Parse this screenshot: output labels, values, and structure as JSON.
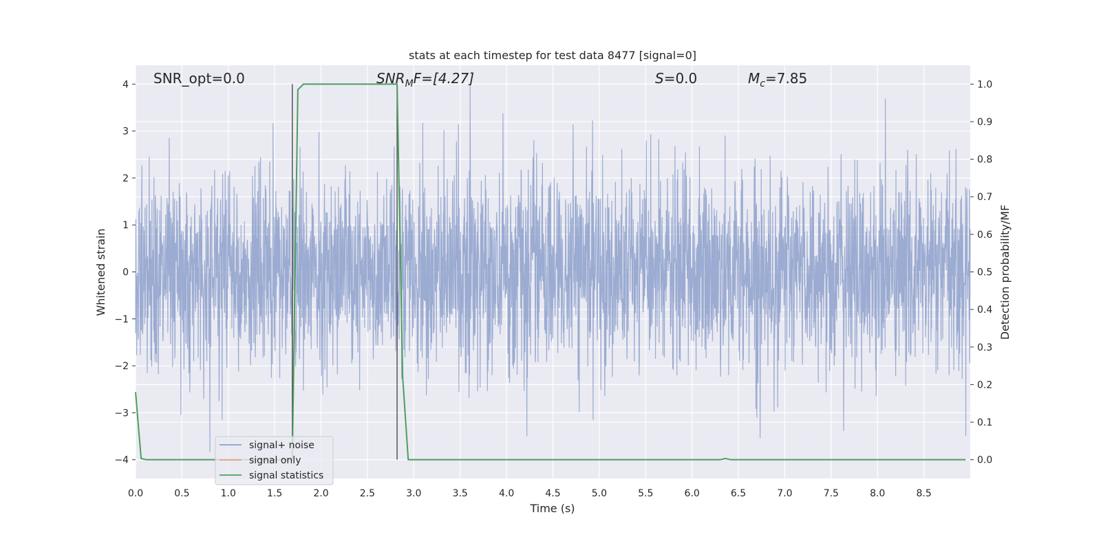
{
  "chart_data": {
    "type": "line",
    "title": "stats at each timestep for test data 8477 [signal=0]",
    "xlabel": "Time (s)",
    "ylabel": "Whitened strain",
    "y2label": "Detection probability/MF",
    "xlim": [
      0.0,
      9.0
    ],
    "ylim": [
      -4.4,
      4.4
    ],
    "y2lim": [
      -0.05,
      1.05
    ],
    "xticks": [
      "0.0",
      "0.5",
      "1.0",
      "1.5",
      "2.0",
      "2.5",
      "3.0",
      "3.5",
      "4.0",
      "4.5",
      "5.0",
      "5.5",
      "6.0",
      "6.5",
      "7.0",
      "7.5",
      "8.0",
      "8.5"
    ],
    "yticks": [
      "4",
      "3",
      "2",
      "1",
      "0",
      "−1",
      "−2",
      "−3",
      "−4"
    ],
    "y2ticks": [
      "1.0",
      "0.9",
      "0.8",
      "0.7",
      "0.6",
      "0.5",
      "0.4",
      "0.3",
      "0.2",
      "0.1",
      "0.0"
    ],
    "grid": true,
    "legend_position": "lower-left",
    "annotations": {
      "snr_opt": "SNR_opt=0.0",
      "snr_mf_base": "SNR",
      "snr_mf_sub": "M",
      "snr_mf_tail": "F=[4.27]",
      "s_base": "S",
      "s_tail": "=0.0",
      "mc_base": "M",
      "mc_sub": "c",
      "mc_tail": "=7.85"
    },
    "vlines_x": [
      1.69,
      2.82
    ],
    "series": [
      {
        "name": "signal+ noise",
        "color": "#8da0cb",
        "kind": "noise",
        "description_points": 3000
      },
      {
        "name": "signal only",
        "color": "#e5a27f",
        "kind": "empty"
      },
      {
        "name": "signal statistics",
        "color": "#4c9e5c",
        "kind": "stats",
        "x": [
          0.0,
          0.06,
          0.12,
          1.69,
          1.75,
          1.81,
          2.8,
          2.82,
          2.88,
          2.94,
          6.3,
          6.36,
          6.42,
          8.95
        ],
        "y": [
          0.18,
          0.003,
          0.0,
          0.0,
          0.985,
          1.0,
          1.0,
          1.0,
          0.22,
          0.0,
          0.0,
          0.003,
          0.0,
          0.0
        ]
      }
    ]
  },
  "colors": {
    "plot_bg": "#eaeaf2",
    "grid": "#ffffff",
    "noise": "#8da0cb",
    "signal_only": "#e5a27f",
    "stats": "#4c9e5c",
    "vline": "#555555"
  }
}
